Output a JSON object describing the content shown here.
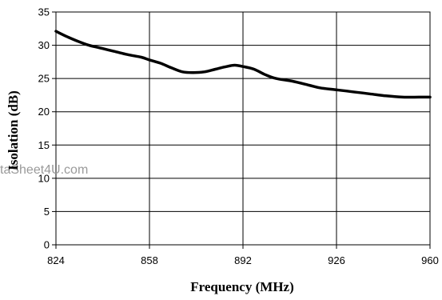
{
  "chart_data": {
    "type": "line",
    "xlabel": "Frequency (MHz)",
    "ylabel": "Isolation (dB)",
    "xlim": [
      824,
      960
    ],
    "ylim": [
      0,
      35
    ],
    "x_ticks": [
      824,
      858,
      892,
      926,
      960
    ],
    "y_ticks": [
      0,
      5,
      10,
      15,
      20,
      25,
      30,
      35
    ],
    "grid": {
      "vertical": true,
      "horizontal": true
    },
    "legend": "none",
    "line_color": "#000000",
    "series": [
      {
        "x": [
          824,
          828,
          832,
          836,
          840,
          845,
          850,
          855,
          858,
          862,
          866,
          870,
          874,
          878,
          882,
          886,
          889,
          892,
          896,
          900,
          904,
          910,
          916,
          920,
          926,
          932,
          938,
          944,
          950,
          956,
          960
        ],
        "y": [
          32.1,
          31.3,
          30.6,
          30.0,
          29.6,
          29.1,
          28.6,
          28.2,
          27.8,
          27.3,
          26.6,
          26.0,
          25.9,
          26.0,
          26.4,
          26.8,
          27.0,
          26.8,
          26.4,
          25.6,
          25.0,
          24.6,
          24.0,
          23.6,
          23.3,
          23.0,
          22.7,
          22.4,
          22.2,
          22.2,
          22.2
        ]
      }
    ]
  },
  "watermark": "taSheet4U.com"
}
